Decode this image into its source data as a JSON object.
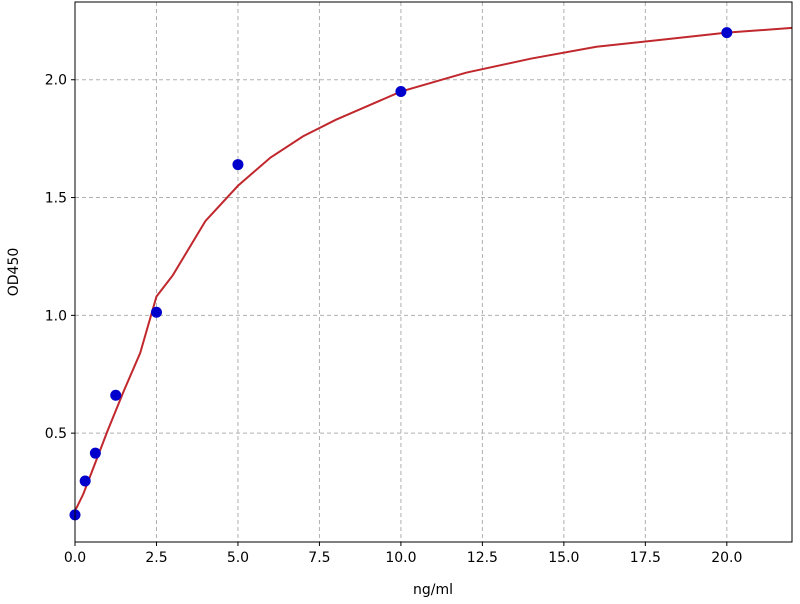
{
  "chart_data": {
    "type": "scatter",
    "title": "",
    "xlabel": "ng/ml",
    "ylabel": "OD450",
    "xlim": [
      0,
      22
    ],
    "ylim": [
      0.038,
      2.33
    ],
    "grid": true,
    "x_ticks": [
      "0.0",
      "2.5",
      "5.0",
      "7.5",
      "10.0",
      "12.5",
      "15.0",
      "17.5",
      "20.0"
    ],
    "y_ticks": [
      "0.5",
      "1.0",
      "1.5",
      "2.0"
    ],
    "series": [
      {
        "kind": "points",
        "color": "#0000cc",
        "x": [
          0,
          0.3125,
          0.625,
          1.25,
          2.5,
          5,
          10,
          20
        ],
        "y": [
          0.153,
          0.297,
          0.415,
          0.661,
          1.013,
          1.64,
          1.95,
          2.2
        ]
      },
      {
        "kind": "fit-line",
        "color": "#c0282d",
        "x": [
          0,
          0.25,
          0.5,
          0.75,
          1,
          1.5,
          2,
          2.5,
          3,
          4,
          5,
          6,
          7,
          8,
          9,
          10,
          12,
          14,
          16,
          18,
          20,
          22
        ],
        "y": [
          0.17,
          0.24,
          0.33,
          0.42,
          0.51,
          0.68,
          0.84,
          1.08,
          1.17,
          1.4,
          1.55,
          1.67,
          1.76,
          1.83,
          1.89,
          1.95,
          2.03,
          2.09,
          2.14,
          2.17,
          2.2,
          2.22
        ]
      }
    ]
  }
}
